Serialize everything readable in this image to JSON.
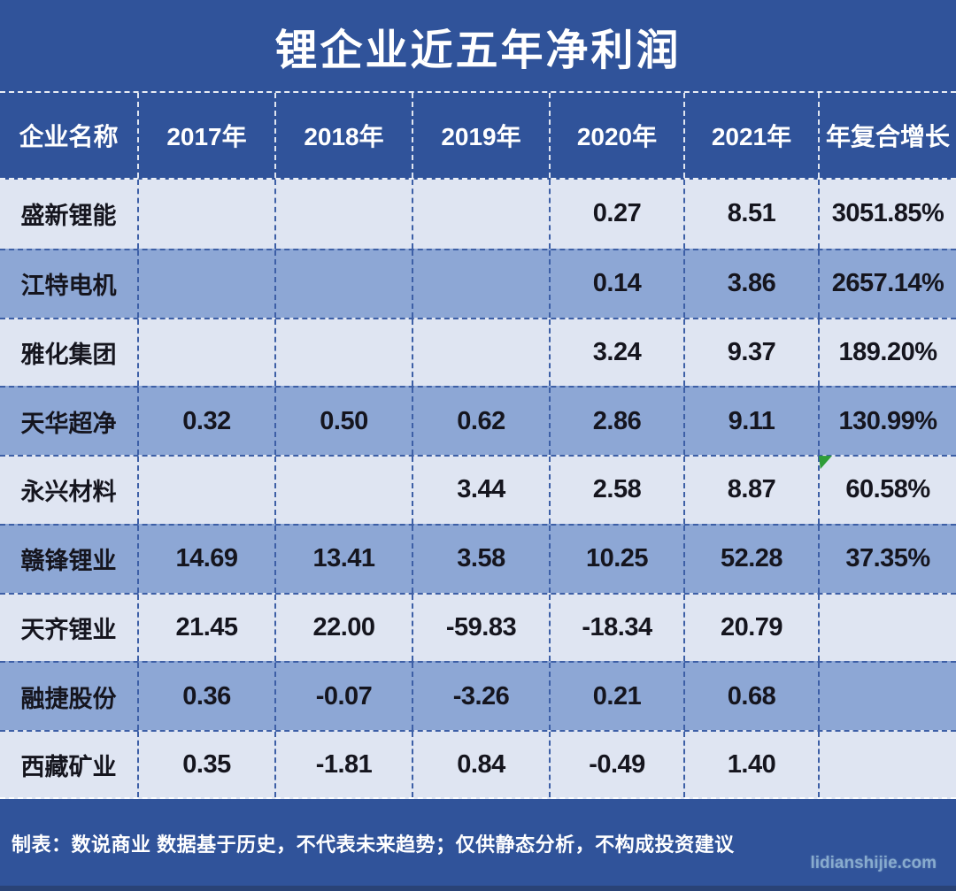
{
  "title": "锂企业近五年净利润",
  "table": {
    "columns": [
      "企业名称",
      "2017年",
      "2018年",
      "2019年",
      "2020年",
      "2021年",
      "年复合增长"
    ],
    "rows": [
      [
        "盛新锂能",
        "",
        "",
        "",
        "0.27",
        "8.51",
        "3051.85%"
      ],
      [
        "江特电机",
        "",
        "",
        "",
        "0.14",
        "3.86",
        "2657.14%"
      ],
      [
        "雅化集团",
        "",
        "",
        "",
        "3.24",
        "9.37",
        "189.20%"
      ],
      [
        "天华超净",
        "0.32",
        "0.50",
        "0.62",
        "2.86",
        "9.11",
        "130.99%"
      ],
      [
        "永兴材料",
        "",
        "",
        "3.44",
        "2.58",
        "8.87",
        "60.58%"
      ],
      [
        "赣锋锂业",
        "14.69",
        "13.41",
        "3.58",
        "10.25",
        "52.28",
        "37.35%"
      ],
      [
        "天齐锂业",
        "21.45",
        "22.00",
        "-59.83",
        "-18.34",
        "20.79",
        ""
      ],
      [
        "融捷股份",
        "0.36",
        "-0.07",
        "-3.26",
        "0.21",
        "0.68",
        ""
      ],
      [
        "西藏矿业",
        "0.35",
        "-1.81",
        "0.84",
        "-0.49",
        "1.40",
        ""
      ]
    ],
    "marker": {
      "row_index": 4,
      "col_index": 6,
      "shape": "green-triangle"
    }
  },
  "chart_data": {
    "type": "table",
    "title": "锂企业近五年净利润",
    "columns": [
      "企业名称",
      "2017年",
      "2018年",
      "2019年",
      "2020年",
      "2021年",
      "年复合增长"
    ],
    "series": [
      {
        "name": "盛新锂能",
        "values": [
          null,
          null,
          null,
          0.27,
          8.51
        ],
        "cagr": "3051.85%"
      },
      {
        "name": "江特电机",
        "values": [
          null,
          null,
          null,
          0.14,
          3.86
        ],
        "cagr": "2657.14%"
      },
      {
        "name": "雅化集团",
        "values": [
          null,
          null,
          null,
          3.24,
          9.37
        ],
        "cagr": "189.20%"
      },
      {
        "name": "天华超净",
        "values": [
          0.32,
          0.5,
          0.62,
          2.86,
          9.11
        ],
        "cagr": "130.99%"
      },
      {
        "name": "永兴材料",
        "values": [
          null,
          null,
          3.44,
          2.58,
          8.87
        ],
        "cagr": "60.58%"
      },
      {
        "name": "赣锋锂业",
        "values": [
          14.69,
          13.41,
          3.58,
          10.25,
          52.28
        ],
        "cagr": "37.35%"
      },
      {
        "name": "天齐锂业",
        "values": [
          21.45,
          22.0,
          -59.83,
          -18.34,
          20.79
        ],
        "cagr": null
      },
      {
        "name": "融捷股份",
        "values": [
          0.36,
          -0.07,
          -3.26,
          0.21,
          0.68
        ],
        "cagr": null
      },
      {
        "name": "西藏矿业",
        "values": [
          0.35,
          -1.81,
          0.84,
          -0.49,
          1.4
        ],
        "cagr": null
      }
    ],
    "x_categories": [
      "2017年",
      "2018年",
      "2019年",
      "2020年",
      "2021年"
    ]
  },
  "footer": {
    "note": "制表：数说商业 数据基于历史，不代表未来趋势；仅供静态分析，不构成投资建议",
    "watermark": "lidianshijie.com"
  },
  "colors": {
    "band_blue": "#30539a",
    "row_light": "#dfe5f2",
    "row_medium": "#8da7d5",
    "cell_text": "#15151e",
    "header_text": "#ffffff",
    "divider_dark": "#3d5fa6",
    "marker_green": "#2f9e38",
    "watermark_text": "#a8d0e4"
  }
}
